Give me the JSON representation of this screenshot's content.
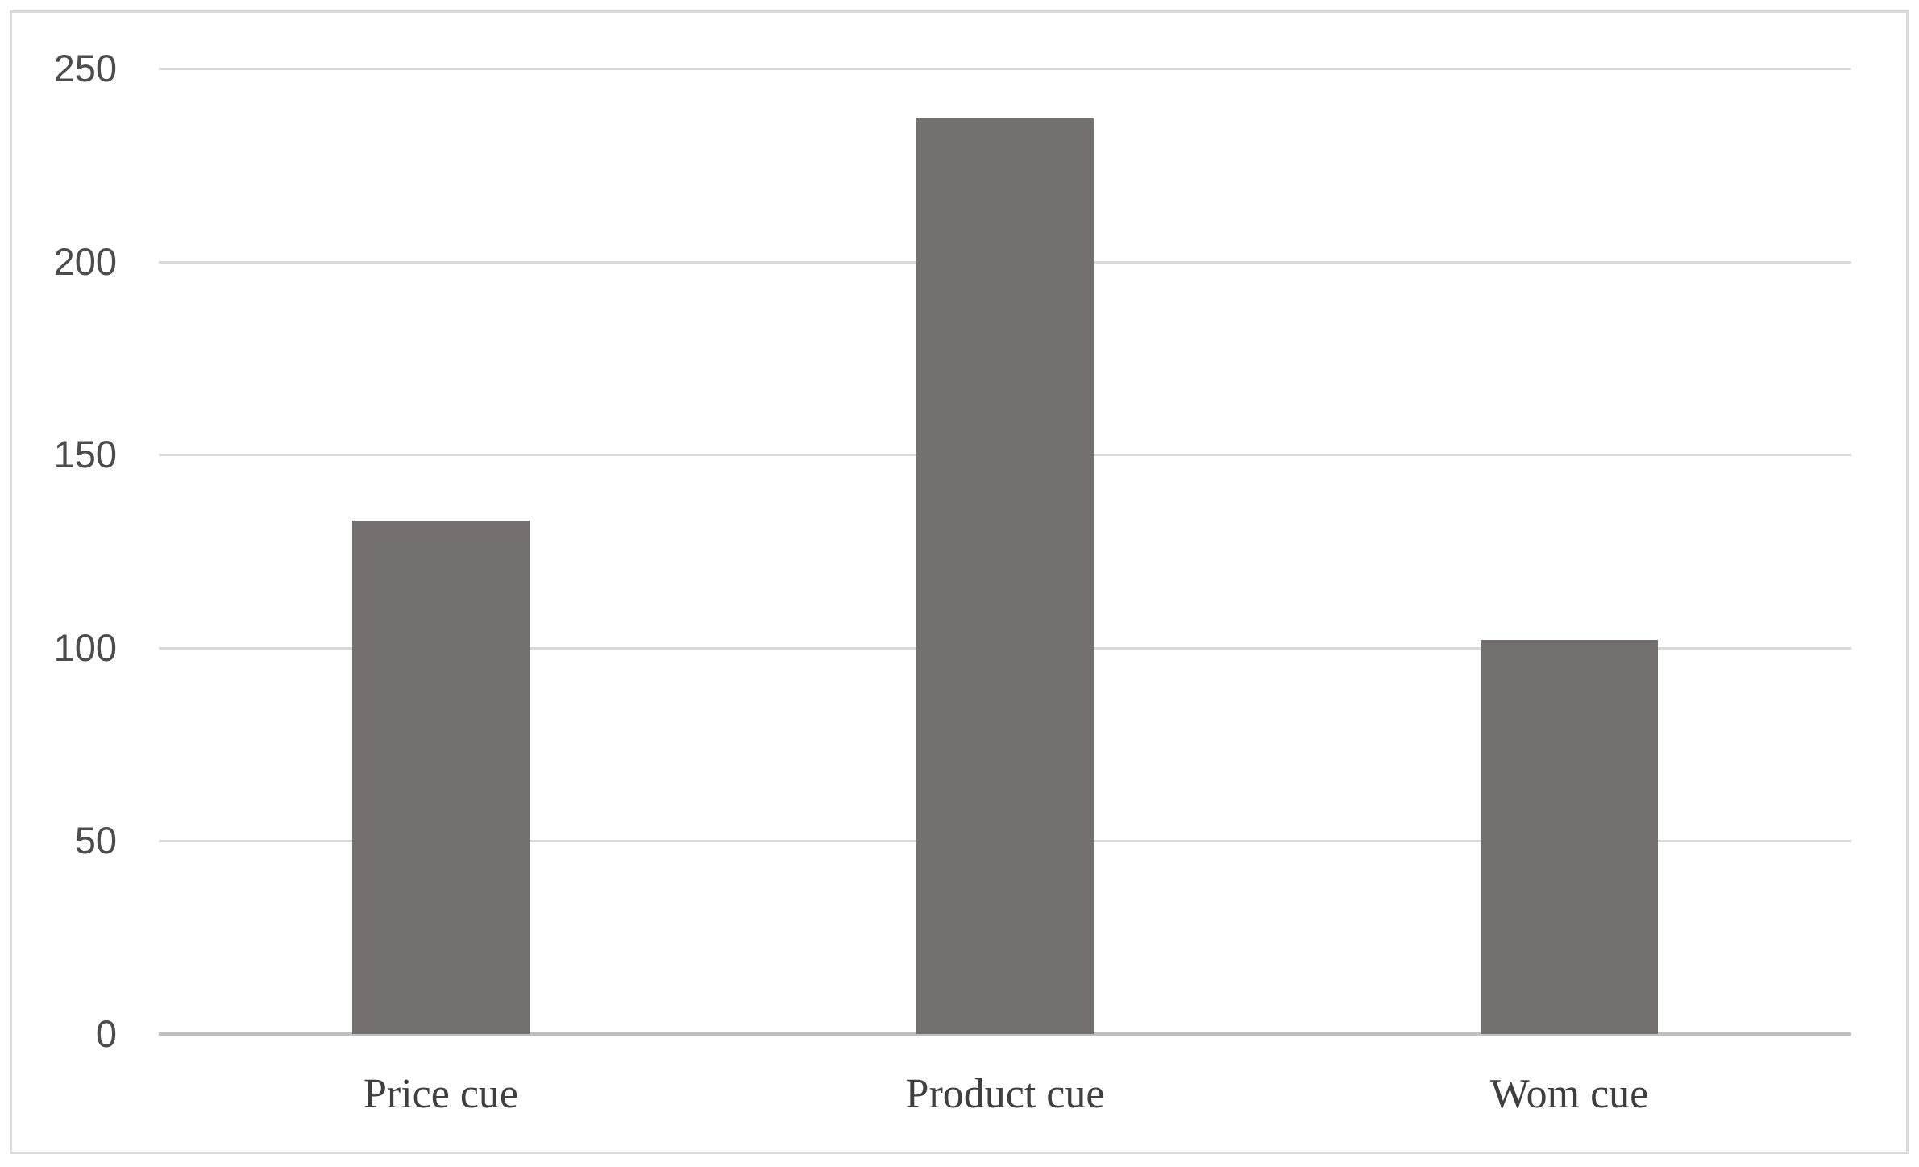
{
  "chart_data": {
    "type": "bar",
    "title": "",
    "xlabel": "",
    "ylabel": "",
    "categories": [
      "Price cue",
      "Product cue",
      "Wom cue"
    ],
    "values": [
      133,
      237,
      102
    ],
    "series": [
      {
        "name": "",
        "values": [
          133,
          237,
          102
        ]
      }
    ],
    "ylim": [
      0,
      250
    ],
    "yticks": [
      250,
      200,
      150,
      100,
      50,
      0
    ],
    "grid": "horizontal gridlines on",
    "legend": "none",
    "colors": {
      "bar": "#747070",
      "gridline": "#d9d9d9",
      "axis_line": "#bfbfbf",
      "tick_label": "#4c4c4c",
      "category_label": "#3f3f3f",
      "frame_border": "#d9d9d9",
      "background": "#ffffff"
    }
  }
}
